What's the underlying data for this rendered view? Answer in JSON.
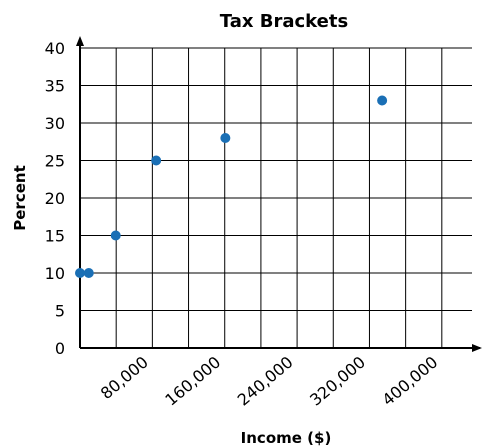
{
  "chart_data": {
    "type": "scatter",
    "title": "Tax Brackets",
    "xlabel": "Income ($)",
    "ylabel": "Percent",
    "xlim": [
      0,
      440000
    ],
    "ylim": [
      0,
      40
    ],
    "x_ticks": [
      80000,
      160000,
      240000,
      320000,
      400000
    ],
    "x_tick_labels": [
      "80,000",
      "160,000",
      "240,000",
      "320,000",
      "400,000"
    ],
    "y_ticks": [
      0,
      5,
      10,
      15,
      20,
      25,
      30,
      35,
      40
    ],
    "y_tick_labels": [
      "0",
      "5",
      "10",
      "15",
      "20",
      "25",
      "30",
      "35",
      "40"
    ],
    "grid": true,
    "marker_color": "#1a6fb5",
    "points": [
      {
        "x": 0,
        "y": 10
      },
      {
        "x": 9700,
        "y": 10
      },
      {
        "x": 39500,
        "y": 15
      },
      {
        "x": 84200,
        "y": 25
      },
      {
        "x": 160700,
        "y": 28
      },
      {
        "x": 334000,
        "y": 33
      }
    ]
  }
}
